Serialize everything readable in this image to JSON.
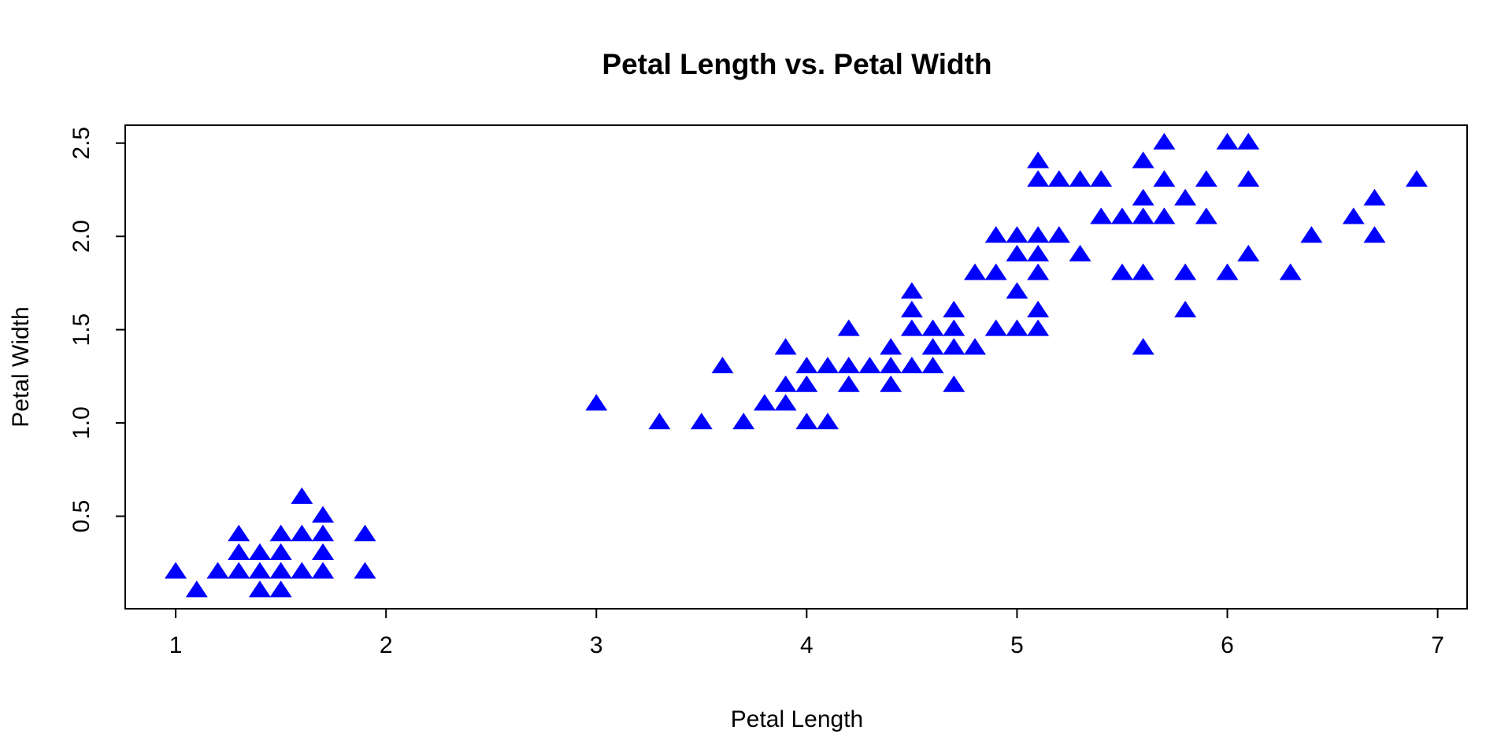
{
  "chart_data": {
    "type": "scatter",
    "title": "Petal Length vs. Petal Width",
    "xlabel": "Petal Length",
    "ylabel": "Petal Width",
    "xlim": [
      0.76,
      7.14
    ],
    "ylim": [
      0.004,
      2.596
    ],
    "x_ticks": [
      1,
      2,
      3,
      4,
      5,
      6,
      7
    ],
    "x_tick_labels": [
      "1",
      "2",
      "3",
      "4",
      "5",
      "6",
      "7"
    ],
    "y_ticks": [
      0.5,
      1.0,
      1.5,
      2.0,
      2.5
    ],
    "y_tick_labels": [
      "0.5",
      "1.0",
      "1.5",
      "2.0",
      "2.5"
    ],
    "marker": "filled-triangle",
    "color": "#0000ff",
    "grid": false,
    "legend": "none",
    "series": [
      {
        "points": [
          [
            1.0,
            0.2
          ],
          [
            1.1,
            0.1
          ],
          [
            1.2,
            0.2
          ],
          [
            1.3,
            0.2
          ],
          [
            1.3,
            0.3
          ],
          [
            1.3,
            0.4
          ],
          [
            1.4,
            0.1
          ],
          [
            1.4,
            0.2
          ],
          [
            1.4,
            0.3
          ],
          [
            1.5,
            0.1
          ],
          [
            1.5,
            0.2
          ],
          [
            1.5,
            0.3
          ],
          [
            1.5,
            0.4
          ],
          [
            1.6,
            0.2
          ],
          [
            1.6,
            0.4
          ],
          [
            1.6,
            0.6
          ],
          [
            1.7,
            0.2
          ],
          [
            1.7,
            0.3
          ],
          [
            1.7,
            0.4
          ],
          [
            1.7,
            0.5
          ],
          [
            1.9,
            0.2
          ],
          [
            1.9,
            0.4
          ],
          [
            3.0,
            1.1
          ],
          [
            3.3,
            1.0
          ],
          [
            3.5,
            1.0
          ],
          [
            3.6,
            1.3
          ],
          [
            3.7,
            1.0
          ],
          [
            3.8,
            1.1
          ],
          [
            3.9,
            1.1
          ],
          [
            3.9,
            1.2
          ],
          [
            3.9,
            1.4
          ],
          [
            4.0,
            1.0
          ],
          [
            4.0,
            1.2
          ],
          [
            4.0,
            1.3
          ],
          [
            4.1,
            1.0
          ],
          [
            4.1,
            1.3
          ],
          [
            4.2,
            1.2
          ],
          [
            4.2,
            1.3
          ],
          [
            4.2,
            1.5
          ],
          [
            4.3,
            1.3
          ],
          [
            4.4,
            1.2
          ],
          [
            4.4,
            1.3
          ],
          [
            4.4,
            1.4
          ],
          [
            4.5,
            1.3
          ],
          [
            4.5,
            1.5
          ],
          [
            4.5,
            1.6
          ],
          [
            4.5,
            1.7
          ],
          [
            4.6,
            1.3
          ],
          [
            4.6,
            1.4
          ],
          [
            4.6,
            1.5
          ],
          [
            4.7,
            1.2
          ],
          [
            4.7,
            1.4
          ],
          [
            4.7,
            1.5
          ],
          [
            4.7,
            1.6
          ],
          [
            4.8,
            1.4
          ],
          [
            4.8,
            1.8
          ],
          [
            4.9,
            1.5
          ],
          [
            4.9,
            1.8
          ],
          [
            4.9,
            2.0
          ],
          [
            5.0,
            1.5
          ],
          [
            5.0,
            1.7
          ],
          [
            5.0,
            1.9
          ],
          [
            5.0,
            2.0
          ],
          [
            5.1,
            1.5
          ],
          [
            5.1,
            1.6
          ],
          [
            5.1,
            1.8
          ],
          [
            5.1,
            1.9
          ],
          [
            5.1,
            2.0
          ],
          [
            5.1,
            2.3
          ],
          [
            5.1,
            2.4
          ],
          [
            5.2,
            2.0
          ],
          [
            5.2,
            2.3
          ],
          [
            5.3,
            1.9
          ],
          [
            5.3,
            2.3
          ],
          [
            5.4,
            2.1
          ],
          [
            5.4,
            2.3
          ],
          [
            5.5,
            1.8
          ],
          [
            5.5,
            2.1
          ],
          [
            5.6,
            1.4
          ],
          [
            5.6,
            1.8
          ],
          [
            5.6,
            2.1
          ],
          [
            5.6,
            2.2
          ],
          [
            5.6,
            2.4
          ],
          [
            5.7,
            2.1
          ],
          [
            5.7,
            2.3
          ],
          [
            5.7,
            2.5
          ],
          [
            5.8,
            1.6
          ],
          [
            5.8,
            1.8
          ],
          [
            5.8,
            2.2
          ],
          [
            5.9,
            2.1
          ],
          [
            5.9,
            2.3
          ],
          [
            6.0,
            1.8
          ],
          [
            6.0,
            2.5
          ],
          [
            6.1,
            1.9
          ],
          [
            6.1,
            2.3
          ],
          [
            6.1,
            2.5
          ],
          [
            6.3,
            1.8
          ],
          [
            6.4,
            2.0
          ],
          [
            6.6,
            2.1
          ],
          [
            6.7,
            2.0
          ],
          [
            6.7,
            2.2
          ],
          [
            6.9,
            2.3
          ]
        ]
      }
    ]
  }
}
